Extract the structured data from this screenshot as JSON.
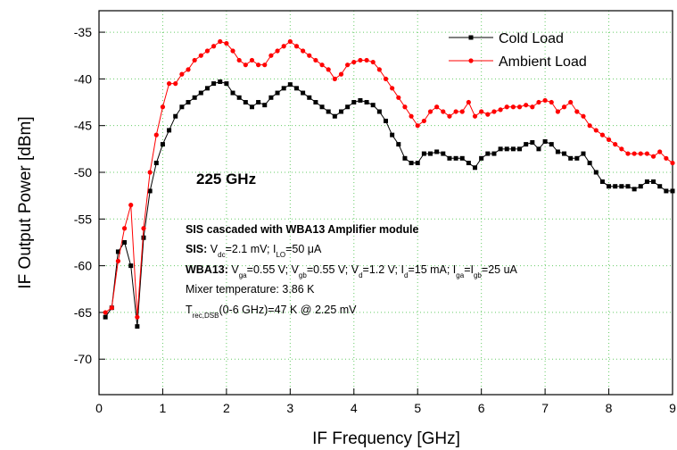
{
  "chart_data": {
    "type": "line",
    "xlabel": "IF Frequency [GHz]",
    "ylabel": "IF Output Power [dBm]",
    "x": [
      0.1,
      0.2,
      0.3,
      0.4,
      0.5,
      0.6,
      0.7,
      0.8,
      0.9,
      1.0,
      1.1,
      1.2,
      1.3,
      1.4,
      1.5,
      1.6,
      1.7,
      1.8,
      1.9,
      2.0,
      2.1,
      2.2,
      2.3,
      2.4,
      2.5,
      2.6,
      2.7,
      2.8,
      2.9,
      3.0,
      3.1,
      3.2,
      3.3,
      3.4,
      3.5,
      3.6,
      3.7,
      3.8,
      3.9,
      4.0,
      4.1,
      4.2,
      4.3,
      4.4,
      4.5,
      4.6,
      4.7,
      4.8,
      4.9,
      5.0,
      5.1,
      5.2,
      5.3,
      5.4,
      5.5,
      5.6,
      5.7,
      5.8,
      5.9,
      6.0,
      6.1,
      6.2,
      6.3,
      6.4,
      6.5,
      6.6,
      6.7,
      6.8,
      6.9,
      7.0,
      7.1,
      7.2,
      7.3,
      7.4,
      7.5,
      7.6,
      7.7,
      7.8,
      7.9,
      8.0,
      8.1,
      8.2,
      8.3,
      8.4,
      8.5,
      8.6,
      8.7,
      8.8,
      8.9,
      9.0
    ],
    "series": [
      {
        "name": "Cold Load",
        "color": "#000000",
        "marker": "square",
        "values": [
          -65.5,
          -64.5,
          -58.5,
          -57.5,
          -60,
          -66.5,
          -57,
          -52,
          -49,
          -47,
          -45.5,
          -44,
          -43,
          -42.5,
          -42,
          -41.5,
          -41,
          -40.5,
          -40.3,
          -40.5,
          -41.5,
          -42,
          -42.5,
          -43,
          -42.5,
          -42.8,
          -42,
          -41.5,
          -41,
          -40.6,
          -41,
          -41.5,
          -42,
          -42.5,
          -43,
          -43.5,
          -44,
          -43.5,
          -43,
          -42.5,
          -42.3,
          -42.5,
          -42.8,
          -43.5,
          -44.5,
          -46,
          -47,
          -48.5,
          -49,
          -49,
          -48,
          -48,
          -47.8,
          -48,
          -48.5,
          -48.5,
          -48.5,
          -49,
          -49.5,
          -48.5,
          -48,
          -48,
          -47.5,
          -47.5,
          -47.5,
          -47.5,
          -47,
          -46.8,
          -47.5,
          -46.7,
          -47,
          -47.8,
          -48,
          -48.5,
          -48.5,
          -48,
          -49,
          -50,
          -51,
          -51.5,
          -51.5,
          -51.5,
          -51.5,
          -51.8,
          -51.5,
          -51,
          -51,
          -51.5,
          -52,
          -52
        ]
      },
      {
        "name": "Ambient Load",
        "color": "#ff0000",
        "marker": "circle",
        "values": [
          -65,
          -64.5,
          -59.5,
          -56,
          -53.5,
          -65.5,
          -56,
          -50,
          -46,
          -43,
          -40.5,
          -40.5,
          -39.5,
          -39,
          -38,
          -37.5,
          -37,
          -36.5,
          -36,
          -36.2,
          -37,
          -38,
          -38.5,
          -38,
          -38.5,
          -38.5,
          -37.5,
          -37,
          -36.5,
          -36,
          -36.5,
          -37,
          -37.5,
          -38,
          -38.5,
          -39,
          -40,
          -39.5,
          -38.5,
          -38.2,
          -38,
          -38,
          -38.2,
          -39,
          -40,
          -41,
          -42,
          -43,
          -44,
          -45,
          -44.5,
          -43.5,
          -43,
          -43.5,
          -44,
          -43.5,
          -43.5,
          -42.5,
          -44,
          -43.5,
          -43.8,
          -43.5,
          -43.3,
          -43,
          -43,
          -43,
          -42.8,
          -43,
          -42.5,
          -42.3,
          -42.5,
          -43.5,
          -43,
          -42.5,
          -43.5,
          -44,
          -45,
          -45.5,
          -46,
          -46.5,
          -47,
          -47.5,
          -48,
          -48,
          -48,
          -48,
          -48.3,
          -47.8,
          -48.5,
          -49
        ]
      }
    ],
    "xlim": [
      0,
      9
    ],
    "ylim": [
      -73.8,
      -32.7
    ],
    "xticks": [
      0,
      1,
      2,
      3,
      4,
      5,
      6,
      7,
      8,
      9
    ],
    "yticks": [
      -70,
      -65,
      -60,
      -55,
      -50,
      -45,
      -40,
      -35
    ],
    "grid": true,
    "legend": "upper right",
    "band_label": "225 GHz",
    "annotations": [
      {
        "runs": [
          {
            "text": "SIS cascaded with WBA13 Amplifier module",
            "style": "bold"
          }
        ]
      },
      {
        "runs": [
          {
            "text": "SIS:",
            "style": "bold"
          },
          {
            "text": " V"
          },
          {
            "text": "dc",
            "style": "sub"
          },
          {
            "text": "=2.1 mV; I"
          },
          {
            "text": "LO",
            "style": "sub"
          },
          {
            "text": "=50 μA"
          }
        ]
      },
      {
        "runs": [
          {
            "text": "WBA13:",
            "style": "bold"
          },
          {
            "text": " V"
          },
          {
            "text": "ga",
            "style": "sub"
          },
          {
            "text": "=0.55 V; V"
          },
          {
            "text": "gb",
            "style": "sub"
          },
          {
            "text": "=0.55 V; V"
          },
          {
            "text": "d",
            "style": "sub"
          },
          {
            "text": "=1.2 V; I"
          },
          {
            "text": "d",
            "style": "sub"
          },
          {
            "text": "=15 mA; I"
          },
          {
            "text": "ga",
            "style": "sub"
          },
          {
            "text": "=I"
          },
          {
            "text": "gb",
            "style": "sub"
          },
          {
            "text": "=25 uA"
          }
        ]
      },
      {
        "runs": [
          {
            "text": "Mixer temperature: 3.86 K"
          }
        ]
      },
      {
        "runs": [
          {
            "text": "T"
          },
          {
            "text": "rec,DSB",
            "style": "sub"
          },
          {
            "text": "(0-6 GHz)=47 K @ 2.25 mV"
          }
        ]
      }
    ]
  }
}
